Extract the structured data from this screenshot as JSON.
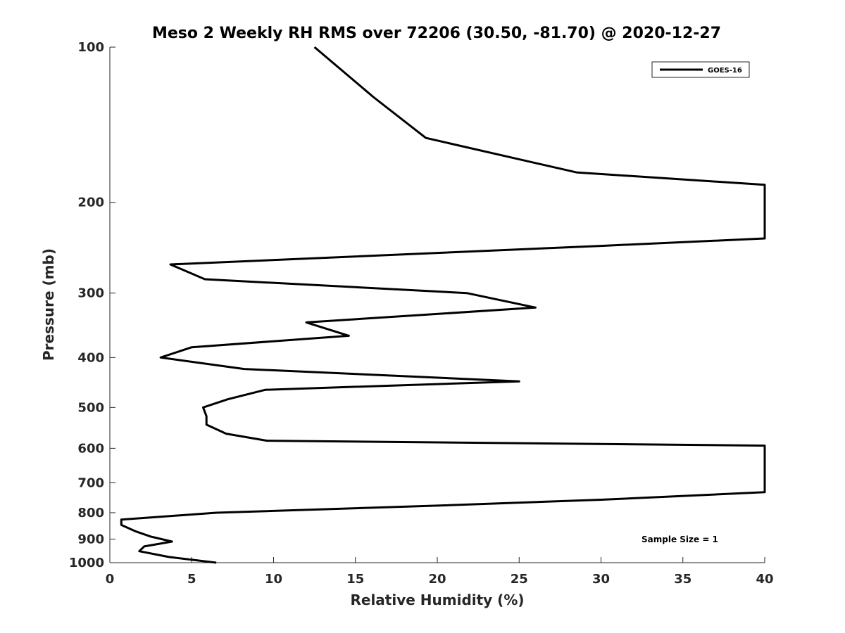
{
  "chart_data": {
    "type": "line",
    "title": "Meso 2 Weekly RH RMS over 72206 (30.50, -81.70) @ 2020-12-27",
    "xlabel": "Relative Humidity (%)",
    "ylabel": "Pressure (mb)",
    "xlim": [
      0,
      40
    ],
    "ylim": [
      100,
      1000
    ],
    "y_scale": "log",
    "y_reversed": true,
    "grid": false,
    "legend_position": "top-right",
    "x_ticks": [
      "0",
      "5",
      "10",
      "15",
      "20",
      "25",
      "30",
      "35",
      "40"
    ],
    "y_ticks": [
      "100",
      "200",
      "300",
      "400",
      "500",
      "600",
      "700",
      "800",
      "900",
      "1000"
    ],
    "annotation": "Sample Size = 1",
    "series": [
      {
        "name": "GOES-16",
        "color": "#000000",
        "points": [
          [
            12.5,
            100
          ],
          [
            16.1,
            125
          ],
          [
            19.3,
            150
          ],
          [
            28.5,
            175
          ],
          [
            40.0,
            185
          ],
          [
            40.0,
            235
          ],
          [
            30.0,
            243
          ],
          [
            3.7,
            264
          ],
          [
            5.8,
            282
          ],
          [
            21.8,
            300
          ],
          [
            26.0,
            320
          ],
          [
            12.0,
            342
          ],
          [
            14.6,
            363
          ],
          [
            5.0,
            382
          ],
          [
            3.1,
            400
          ],
          [
            8.2,
            421
          ],
          [
            25.0,
            445
          ],
          [
            9.5,
            462
          ],
          [
            7.2,
            482
          ],
          [
            5.7,
            500
          ],
          [
            5.9,
            520
          ],
          [
            5.9,
            540
          ],
          [
            7.1,
            562
          ],
          [
            9.6,
            580
          ],
          [
            40.0,
            593
          ],
          [
            40.0,
            730
          ],
          [
            30.0,
            755
          ],
          [
            20.0,
            775
          ],
          [
            6.5,
            800
          ],
          [
            0.7,
            825
          ],
          [
            0.7,
            845
          ],
          [
            1.6,
            870
          ],
          [
            2.5,
            890
          ],
          [
            3.8,
            910
          ],
          [
            2.1,
            930
          ],
          [
            1.8,
            950
          ],
          [
            3.6,
            975
          ],
          [
            6.5,
            1000
          ]
        ]
      }
    ]
  }
}
